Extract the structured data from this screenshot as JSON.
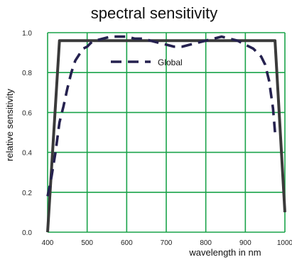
{
  "chart_data": {
    "type": "line",
    "title": "spectral sensitivity",
    "xlabel": "wavelength in nm",
    "ylabel": "relative sensitivity",
    "xlim": [
      400,
      1000
    ],
    "ylim": [
      0.0,
      1.0
    ],
    "x_ticks": [
      "400",
      "500",
      "600",
      "700",
      "800",
      "900",
      "1000"
    ],
    "y_ticks": [
      "0.0",
      "0.2",
      "0.4",
      "0.6",
      "0.8",
      "1.0"
    ],
    "grid": true,
    "grid_color": "#1aa34a",
    "legend": {
      "position": "top-center",
      "entries": [
        "Global"
      ]
    },
    "series": [
      {
        "style": "solid",
        "color": "#3a3a3a",
        "x": [
          400,
          430,
          975,
          1000
        ],
        "y": [
          0.0,
          0.96,
          0.96,
          0.1
        ]
      },
      {
        "name": "Global",
        "style": "dashed",
        "color": "#25214f",
        "x": [
          400,
          410,
          420,
          430,
          440,
          450,
          460,
          470,
          480,
          490,
          500,
          510,
          520,
          540,
          560,
          580,
          600,
          620,
          640,
          660,
          680,
          700,
          720,
          740,
          760,
          780,
          800,
          820,
          840,
          860,
          880,
          900,
          920,
          940,
          950,
          960,
          970,
          975
        ],
        "y": [
          0.18,
          0.28,
          0.4,
          0.55,
          0.63,
          0.72,
          0.8,
          0.86,
          0.89,
          0.92,
          0.93,
          0.95,
          0.96,
          0.97,
          0.98,
          0.98,
          0.98,
          0.97,
          0.97,
          0.96,
          0.95,
          0.94,
          0.93,
          0.93,
          0.94,
          0.95,
          0.96,
          0.97,
          0.98,
          0.97,
          0.96,
          0.94,
          0.92,
          0.88,
          0.84,
          0.76,
          0.62,
          0.5
        ]
      }
    ]
  }
}
